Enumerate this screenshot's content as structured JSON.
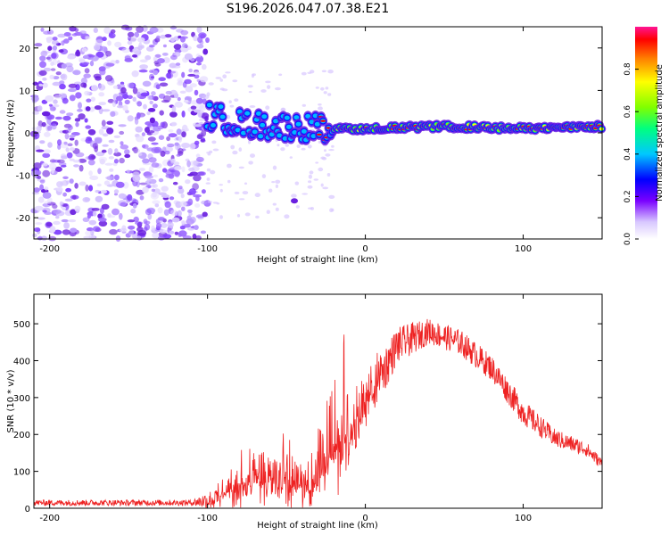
{
  "title": "S196.2026.047.07.38.E21",
  "chart_data": [
    {
      "type": "heatmap",
      "xlabel": "Height of straight line (km)",
      "ylabel": "Frequency (Hz)",
      "xlim": [
        -210,
        150
      ],
      "ylim": [
        -25,
        25
      ],
      "xticks": [
        "-200",
        "-100",
        "0",
        "100"
      ],
      "yticks": [
        "20",
        "10",
        "0",
        "-10",
        "-20"
      ],
      "colorbar": {
        "label": "Normalized spectral amplitude",
        "range": [
          0.0,
          1.0
        ],
        "ticks": [
          "0.0",
          "0.2",
          "0.4",
          "0.6",
          "0.8"
        ]
      },
      "description_regions": {
        "noise_region_x": [
          -210,
          -100
        ],
        "signal_track": [
          {
            "x": -100,
            "y": 4
          },
          {
            "x": -75,
            "y": 2
          },
          {
            "x": -50,
            "y": 1.5
          },
          {
            "x": -20,
            "y": 1
          },
          {
            "x": 0,
            "y": 1
          },
          {
            "x": 50,
            "y": 1.5
          },
          {
            "x": 100,
            "y": 1
          },
          {
            "x": 150,
            "y": 1.5
          }
        ]
      }
    },
    {
      "type": "line",
      "xlabel": "Height of straight line (km)",
      "ylabel": "SNR (10 * v/v)",
      "xlim": [
        -210,
        150
      ],
      "ylim": [
        0,
        580
      ],
      "xticks": [
        "-200",
        "-100",
        "0",
        "100"
      ],
      "yticks": [
        "0",
        "100",
        "200",
        "300",
        "400",
        "500"
      ],
      "color": "#ee2222",
      "envelope": [
        {
          "x": -210,
          "base": 15,
          "amp": 10
        },
        {
          "x": -110,
          "base": 15,
          "amp": 10
        },
        {
          "x": -95,
          "base": 25,
          "amp": 40
        },
        {
          "x": -80,
          "base": 60,
          "amp": 120
        },
        {
          "x": -60,
          "base": 80,
          "amp": 150
        },
        {
          "x": -45,
          "base": 60,
          "amp": 140
        },
        {
          "x": -35,
          "base": 50,
          "amp": 100
        },
        {
          "x": -20,
          "base": 150,
          "amp": 250
        },
        {
          "x": -15,
          "base": 200,
          "amp": 380
        },
        {
          "x": -10,
          "base": 180,
          "amp": 150
        },
        {
          "x": 0,
          "base": 280,
          "amp": 160
        },
        {
          "x": 20,
          "base": 440,
          "amp": 100
        },
        {
          "x": 40,
          "base": 480,
          "amp": 70
        },
        {
          "x": 60,
          "base": 450,
          "amp": 70
        },
        {
          "x": 80,
          "base": 380,
          "amp": 70
        },
        {
          "x": 100,
          "base": 260,
          "amp": 70
        },
        {
          "x": 120,
          "base": 190,
          "amp": 50
        },
        {
          "x": 140,
          "base": 160,
          "amp": 40
        },
        {
          "x": 150,
          "base": 120,
          "amp": 30
        }
      ]
    }
  ]
}
